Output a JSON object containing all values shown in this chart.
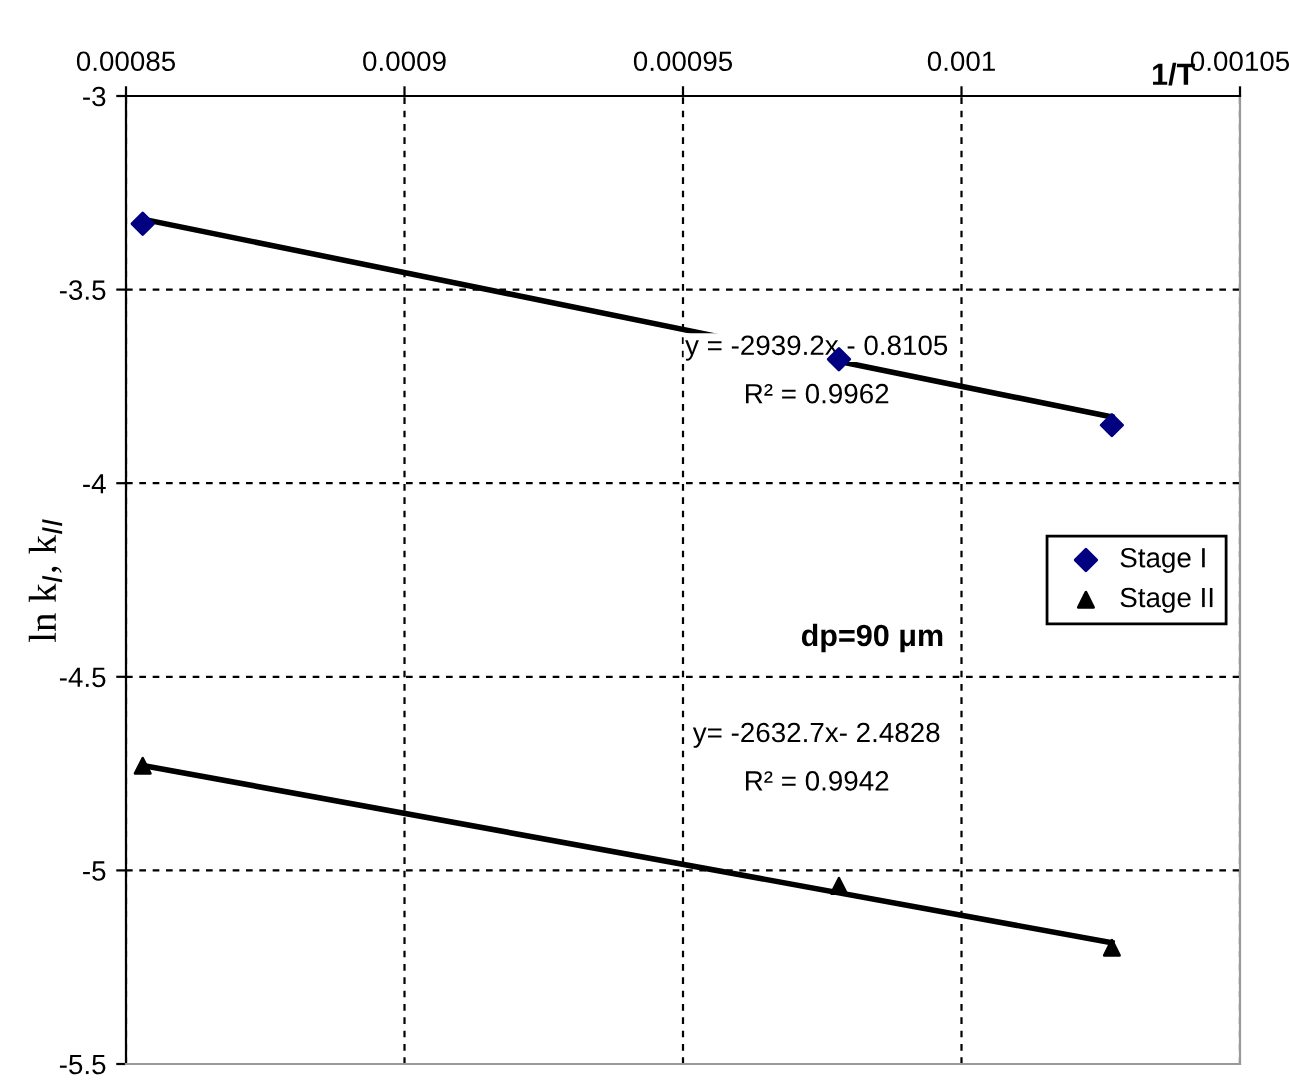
{
  "chart_data": {
    "type": "scatter",
    "xlabel": "1/T",
    "ylabel": "ln k$_{I}$, k$_{II}$",
    "xlim": [
      0.00085,
      0.00105
    ],
    "xticks": [
      {
        "value": 0.00085,
        "label": "0.00085"
      },
      {
        "value": 0.0009,
        "label": "0.0009"
      },
      {
        "value": 0.00095,
        "label": "0.00095"
      },
      {
        "value": 0.001,
        "label": "0.001"
      },
      {
        "value": 0.00105,
        "label": "0.00105"
      }
    ],
    "ylim": [
      -5.5,
      -3
    ],
    "yticks": [
      -5.5,
      -5,
      -4.5,
      -4,
      -3.5,
      -3
    ],
    "grid": true,
    "legend": "right",
    "series": [
      {
        "name": "Stage I",
        "color": "#000080",
        "marker": "diamond",
        "x": [
          0.000853,
          0.000978,
          0.001027
        ],
        "values": [
          -3.33,
          -3.68,
          -3.85
        ]
      },
      {
        "name": "Stage II",
        "color": "#000000",
        "marker": "triangle",
        "x": [
          0.000853,
          0.000978,
          0.001027
        ],
        "values": [
          -4.73,
          -5.04,
          -5.2
        ]
      },
      {
        "type": "line",
        "color": "#000000",
        "x": [
          0.000853,
          0.001027
        ],
        "values": [
          -3.318,
          -3.829
        ]
      },
      {
        "type": "line",
        "color": "#000000",
        "x": [
          0.000853,
          0.001027
        ],
        "values": [
          -4.729,
          -5.187
        ]
      }
    ],
    "annotations": [
      "y = -2939.2x - 0.8105",
      "R² = 0.9962",
      "dp=90 μm",
      "y= -2632.7x- 2.4828",
      "R² = 0.9942"
    ]
  }
}
